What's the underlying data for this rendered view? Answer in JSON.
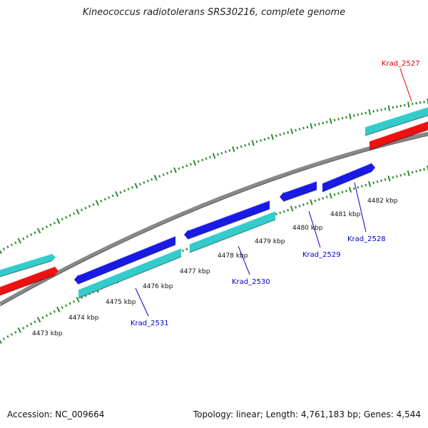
{
  "title": "Kineococcus radiotolerans SRS30216, complete genome",
  "footer": {
    "accession": "Accession: NC_009664",
    "summary": "Topology: linear; Length: 4,761,183 bp; Genes: 4,544"
  },
  "colors": {
    "backbone": "#888888",
    "tick": "#2e8b2e",
    "cyan_gene": "#33cccc",
    "blue_gene": "#1a1ae6",
    "red_gene": "#ee1111",
    "gene_label_blue": "#0000cc",
    "gene_label_red": "#dd0000"
  },
  "scale": {
    "unit": "kbp",
    "ticks": [
      4473,
      4474,
      4475,
      4476,
      4477,
      4478,
      4479,
      4480,
      4481,
      4482
    ],
    "tick_labels": [
      "4473 kbp",
      "4474 kbp",
      "4475 kbp",
      "4476 kbp",
      "4477 kbp",
      "4478 kbp",
      "4479 kbp",
      "4480 kbp",
      "4481 kbp",
      "4482 kbp"
    ]
  },
  "gene_labels": [
    {
      "id": "Krad_2527",
      "text": "Krad_2527",
      "color": "red"
    },
    {
      "id": "Krad_2528",
      "text": "Krad_2528",
      "color": "blue"
    },
    {
      "id": "Krad_2529",
      "text": "Krad_2529",
      "color": "blue"
    },
    {
      "id": "Krad_2530",
      "text": "Krad_2530",
      "color": "blue"
    },
    {
      "id": "Krad_2531",
      "text": "Krad_2531",
      "color": "blue"
    }
  ]
}
